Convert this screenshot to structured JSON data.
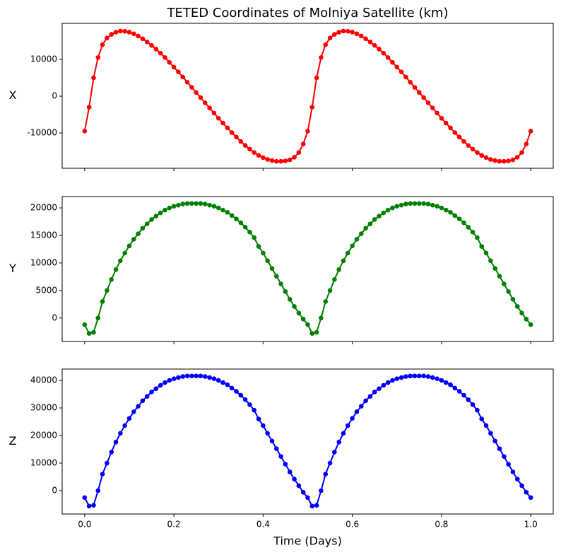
{
  "chart_data": [
    {
      "type": "line",
      "title": "TETED Coordinates of Molniya Satellite (km)",
      "y_label": "X",
      "color": "#ff0000",
      "x": [
        0,
        0.01,
        0.02,
        0.03,
        0.04,
        0.05,
        0.06,
        0.07,
        0.08,
        0.09,
        0.1,
        0.11,
        0.12,
        0.13,
        0.14,
        0.15,
        0.16,
        0.17,
        0.18,
        0.19,
        0.2,
        0.21,
        0.22,
        0.23,
        0.24,
        0.25,
        0.26,
        0.27,
        0.28,
        0.29,
        0.3,
        0.31,
        0.32,
        0.33,
        0.34,
        0.35,
        0.36,
        0.37,
        0.38,
        0.39,
        0.4,
        0.41,
        0.42,
        0.43,
        0.44,
        0.45,
        0.46,
        0.47,
        0.48,
        0.49,
        0.5,
        0.51,
        0.52,
        0.53,
        0.54,
        0.55,
        0.56,
        0.57,
        0.58,
        0.59,
        0.6,
        0.61,
        0.62,
        0.63,
        0.64,
        0.65,
        0.66,
        0.67,
        0.68,
        0.69,
        0.7,
        0.71,
        0.72,
        0.73,
        0.74,
        0.75,
        0.76,
        0.77,
        0.78,
        0.79,
        0.8,
        0.81,
        0.82,
        0.83,
        0.84,
        0.85,
        0.86,
        0.87,
        0.88,
        0.89,
        0.9,
        0.91,
        0.92,
        0.93,
        0.94,
        0.95,
        0.96,
        0.97,
        0.98,
        0.99,
        1
      ],
      "values": [
        -9500,
        -3000,
        5000,
        10500,
        14000,
        15800,
        16800,
        17400,
        17700,
        17650,
        17400,
        16950,
        16350,
        15600,
        14750,
        13800,
        12800,
        11700,
        10500,
        9200,
        7900,
        6600,
        5200,
        3800,
        2400,
        1000,
        -400,
        -1800,
        -3200,
        -4600,
        -6000,
        -7300,
        -8600,
        -9900,
        -11100,
        -12300,
        -13400,
        -14400,
        -15300,
        -16100,
        -16700,
        -17200,
        -17500,
        -17700,
        -17700,
        -17600,
        -17300,
        -16600,
        -15300,
        -13000,
        -9500,
        -3000,
        5000,
        10500,
        14000,
        15800,
        16800,
        17400,
        17700,
        17650,
        17400,
        16950,
        16350,
        15600,
        14750,
        13800,
        12800,
        11700,
        10500,
        9200,
        7900,
        6600,
        5200,
        3800,
        2400,
        1000,
        -400,
        -1800,
        -3200,
        -4600,
        -6000,
        -7300,
        -8600,
        -9900,
        -11100,
        -12300,
        -13400,
        -14400,
        -15300,
        -16100,
        -16700,
        -17200,
        -17500,
        -17700,
        -17700,
        -17600,
        -17300,
        -16600,
        -15300,
        -13000,
        -9500
      ],
      "xlim": [
        -0.0504,
        1.0504
      ],
      "ylim": [
        -19600,
        19800
      ],
      "yticks": [
        -10000,
        0,
        10000
      ]
    },
    {
      "type": "line",
      "y_label": "Y",
      "color": "#008000",
      "x": [
        0,
        0.01,
        0.02,
        0.03,
        0.04,
        0.05,
        0.06,
        0.07,
        0.08,
        0.09,
        0.1,
        0.11,
        0.12,
        0.13,
        0.14,
        0.15,
        0.16,
        0.17,
        0.18,
        0.19,
        0.2,
        0.21,
        0.22,
        0.23,
        0.24,
        0.25,
        0.26,
        0.27,
        0.28,
        0.29,
        0.3,
        0.31,
        0.32,
        0.33,
        0.34,
        0.35,
        0.36,
        0.37,
        0.38,
        0.39,
        0.4,
        0.41,
        0.42,
        0.43,
        0.44,
        0.45,
        0.46,
        0.47,
        0.48,
        0.49,
        0.5,
        0.51,
        0.52,
        0.53,
        0.54,
        0.55,
        0.56,
        0.57,
        0.58,
        0.59,
        0.6,
        0.61,
        0.62,
        0.63,
        0.64,
        0.65,
        0.66,
        0.67,
        0.68,
        0.69,
        0.7,
        0.71,
        0.72,
        0.73,
        0.74,
        0.75,
        0.76,
        0.77,
        0.78,
        0.79,
        0.8,
        0.81,
        0.82,
        0.83,
        0.84,
        0.85,
        0.86,
        0.87,
        0.88,
        0.89,
        0.9,
        0.91,
        0.92,
        0.93,
        0.94,
        0.95,
        0.96,
        0.97,
        0.98,
        0.99,
        1
      ],
      "values": [
        -1200,
        -2800,
        -2600,
        0,
        3000,
        5000,
        7000,
        8800,
        10400,
        11800,
        13100,
        14300,
        15300,
        16300,
        17100,
        17900,
        18500,
        19100,
        19600,
        20000,
        20300,
        20500,
        20700,
        20800,
        20800,
        20800,
        20800,
        20700,
        20500,
        20300,
        20000,
        19600,
        19200,
        18600,
        18000,
        17300,
        16500,
        15600,
        14600,
        13000,
        11800,
        10400,
        9000,
        7600,
        6200,
        4800,
        3400,
        2100,
        900,
        -200,
        -1200,
        -2800,
        -2600,
        0,
        3000,
        5000,
        7000,
        8800,
        10400,
        11800,
        13100,
        14300,
        15300,
        16300,
        17100,
        17900,
        18500,
        19100,
        19600,
        20000,
        20300,
        20500,
        20700,
        20800,
        20800,
        20800,
        20800,
        20700,
        20500,
        20300,
        20000,
        19600,
        19200,
        18600,
        18000,
        17300,
        16500,
        15600,
        14600,
        13000,
        11800,
        10400,
        9000,
        7600,
        6200,
        4800,
        3400,
        2100,
        900,
        -200,
        -1200
      ],
      "xlim": [
        -0.0504,
        1.0504
      ],
      "ylim": [
        -4260,
        22060
      ],
      "yticks": [
        0,
        5000,
        10000,
        15000,
        20000
      ]
    },
    {
      "type": "line",
      "y_label": "Z",
      "x_label": "Time (Days)",
      "color": "#0000ff",
      "x": [
        0,
        0.01,
        0.02,
        0.03,
        0.04,
        0.05,
        0.06,
        0.07,
        0.08,
        0.09,
        0.1,
        0.11,
        0.12,
        0.13,
        0.14,
        0.15,
        0.16,
        0.17,
        0.18,
        0.19,
        0.2,
        0.21,
        0.22,
        0.23,
        0.24,
        0.25,
        0.26,
        0.27,
        0.28,
        0.29,
        0.3,
        0.31,
        0.32,
        0.33,
        0.34,
        0.35,
        0.36,
        0.37,
        0.38,
        0.39,
        0.4,
        0.41,
        0.42,
        0.43,
        0.44,
        0.45,
        0.46,
        0.47,
        0.48,
        0.49,
        0.5,
        0.51,
        0.52,
        0.53,
        0.54,
        0.55,
        0.56,
        0.57,
        0.58,
        0.59,
        0.6,
        0.61,
        0.62,
        0.63,
        0.64,
        0.65,
        0.66,
        0.67,
        0.68,
        0.69,
        0.7,
        0.71,
        0.72,
        0.73,
        0.74,
        0.75,
        0.76,
        0.77,
        0.78,
        0.79,
        0.8,
        0.81,
        0.82,
        0.83,
        0.84,
        0.85,
        0.86,
        0.87,
        0.88,
        0.89,
        0.9,
        0.91,
        0.92,
        0.93,
        0.94,
        0.95,
        0.96,
        0.97,
        0.98,
        0.99,
        1
      ],
      "values": [
        -2500,
        -5600,
        -5300,
        0,
        6000,
        10000,
        14000,
        17600,
        20800,
        23600,
        26200,
        28600,
        30600,
        32600,
        34200,
        35800,
        37000,
        38200,
        39200,
        40000,
        40600,
        41000,
        41400,
        41600,
        41600,
        41600,
        41600,
        41400,
        41000,
        40600,
        40000,
        39200,
        38400,
        37200,
        36000,
        34600,
        33000,
        31200,
        29200,
        26000,
        23600,
        20800,
        18000,
        15200,
        12400,
        9600,
        6800,
        4200,
        1800,
        -600,
        -2500,
        -5600,
        -5300,
        0,
        6000,
        10000,
        14000,
        17600,
        20800,
        23600,
        26200,
        28600,
        30600,
        32600,
        34200,
        35800,
        37000,
        38200,
        39200,
        40000,
        40600,
        41000,
        41400,
        41600,
        41600,
        41600,
        41600,
        41400,
        41000,
        40600,
        40000,
        39200,
        38400,
        37200,
        36000,
        34600,
        33000,
        31200,
        29200,
        26000,
        23600,
        20800,
        18000,
        15200,
        12400,
        9600,
        6800,
        4200,
        1800,
        -600,
        -2500
      ],
      "xlim": [
        -0.0504,
        1.0504
      ],
      "ylim": [
        -8460,
        44100
      ],
      "yticks": [
        0,
        10000,
        20000,
        30000,
        40000
      ],
      "xticks": [
        {
          "value": 0,
          "label": "0.0"
        },
        0.2,
        0.4,
        0.6,
        0.8,
        {
          "value": 1,
          "label": "1.0"
        }
      ]
    }
  ]
}
